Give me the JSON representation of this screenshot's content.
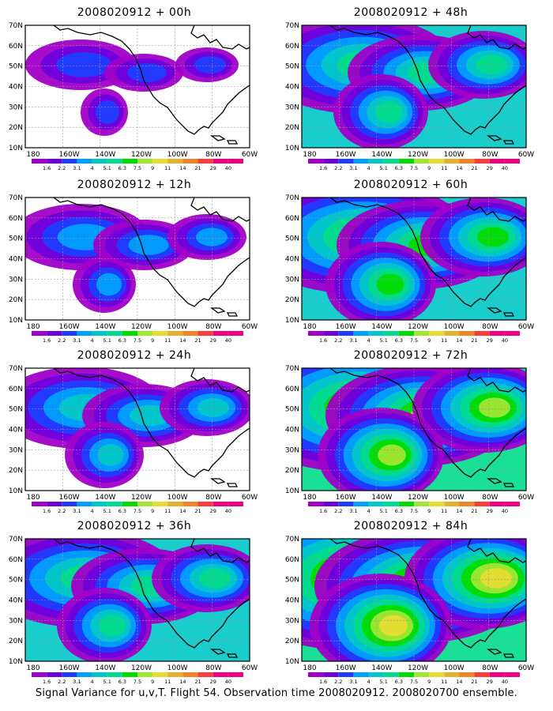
{
  "panels": [
    {
      "id": "00h",
      "title": "2008020912 + 00h",
      "level": 0
    },
    {
      "id": "48h",
      "title": "2008020912 + 48h",
      "level": 3
    },
    {
      "id": "12h",
      "title": "2008020912 + 12h",
      "level": 1
    },
    {
      "id": "60h",
      "title": "2008020912 + 60h",
      "level": 4
    },
    {
      "id": "24h",
      "title": "2008020912 + 24h",
      "level": 2
    },
    {
      "id": "72h",
      "title": "2008020912 + 72h",
      "level": 5
    },
    {
      "id": "36h",
      "title": "2008020912 + 36h",
      "level": 3
    },
    {
      "id": "84h",
      "title": "2008020912 + 84h",
      "level": 6
    }
  ],
  "axes": {
    "lat_labels": [
      "70N",
      "60N",
      "50N",
      "40N",
      "30N",
      "20N",
      "10N"
    ],
    "lon_labels": [
      "180",
      "160W",
      "140W",
      "120W",
      "100W",
      "80W",
      "60W"
    ]
  },
  "colorbar": {
    "labels": [
      "1.6",
      "2.2",
      "3.1",
      "4",
      "5.1",
      "6.3",
      "7.5",
      "9",
      "11",
      "14",
      "21",
      "29",
      "40"
    ],
    "colors": [
      "#a000c8",
      "#6e00dc",
      "#1e3cff",
      "#00a0ff",
      "#00c8c8",
      "#00dc8c",
      "#00dc00",
      "#a0e632",
      "#e6dc32",
      "#e6af2d",
      "#f08228",
      "#fa3c3c",
      "#f00082"
    ]
  },
  "caption": "Signal Variance for u,v,T. Flight 54. Observation time 2008020912. 2008020700 ensemble."
}
